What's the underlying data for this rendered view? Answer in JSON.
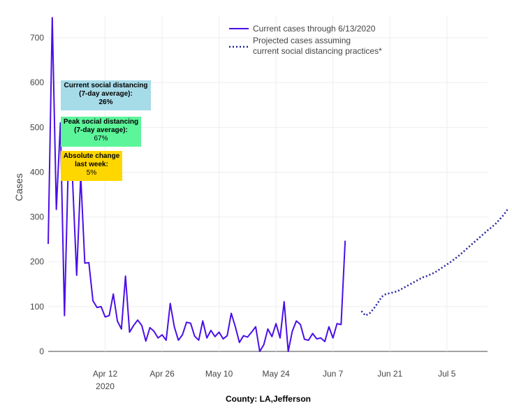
{
  "chart_data": {
    "type": "line",
    "xlabel": "County: LA,Jefferson",
    "ylabel": "Cases",
    "ylim": [
      0,
      750
    ],
    "y_ticks": [
      0,
      100,
      200,
      300,
      400,
      500,
      600,
      700
    ],
    "x_range": [
      "2020-03-29",
      "2020-07-15"
    ],
    "x_ticks": [
      {
        "date": "2020-04-12",
        "label": "Apr 12",
        "sublabel": "2020"
      },
      {
        "date": "2020-04-26",
        "label": "Apr 26",
        "sublabel": ""
      },
      {
        "date": "2020-05-10",
        "label": "May 10",
        "sublabel": ""
      },
      {
        "date": "2020-05-24",
        "label": "May 24",
        "sublabel": ""
      },
      {
        "date": "2020-06-07",
        "label": "Jun 7",
        "sublabel": ""
      },
      {
        "date": "2020-06-21",
        "label": "Jun 21",
        "sublabel": ""
      },
      {
        "date": "2020-07-05",
        "label": "Jul 5",
        "sublabel": ""
      }
    ],
    "grid": true,
    "legend_position": "top-right",
    "series": [
      {
        "name": "Current cases through 6/13/2020",
        "style": "solid",
        "color": "#4a0ee6",
        "start_date": "2020-03-29",
        "values": [
          240,
          745,
          317,
          510,
          80,
          440,
          380,
          170,
          392,
          197,
          198,
          113,
          98,
          100,
          77,
          80,
          128,
          68,
          50,
          168,
          43,
          58,
          70,
          58,
          23,
          53,
          45,
          30,
          37,
          25,
          107,
          55,
          25,
          37,
          65,
          63,
          34,
          25,
          68,
          30,
          47,
          33,
          43,
          28,
          35,
          85,
          55,
          20,
          35,
          32,
          43,
          55,
          0,
          15,
          50,
          33,
          62,
          30,
          111,
          0,
          45,
          68,
          60,
          27,
          25,
          40,
          28,
          30,
          22,
          55,
          30,
          62,
          60,
          247
        ]
      },
      {
        "name": "Projected cases assuming current social distancing practices*",
        "style": "dot",
        "color": "#22229a",
        "start_date": "2020-06-14",
        "values": [
          90,
          80,
          85,
          95,
          108,
          122,
          128,
          130,
          132,
          135,
          140,
          145,
          150,
          155,
          160,
          165,
          168,
          172,
          176,
          182,
          188,
          194,
          200,
          207,
          214,
          222,
          230,
          238,
          246,
          254,
          262,
          270,
          277,
          285,
          295,
          305,
          318
        ]
      }
    ],
    "annotations": [
      {
        "title_line1": "Current social distancing",
        "title_line2": "(7-day average):",
        "value": "26%",
        "color": "#a6dbe8"
      },
      {
        "title_line1": "Peak social distancing",
        "title_line2": "(7-day average):",
        "value": "67%",
        "color": "#5cf59a"
      },
      {
        "title_line1": "Absolute change",
        "title_line2": "last week:",
        "value": "5%",
        "color": "#ffd700"
      }
    ]
  }
}
